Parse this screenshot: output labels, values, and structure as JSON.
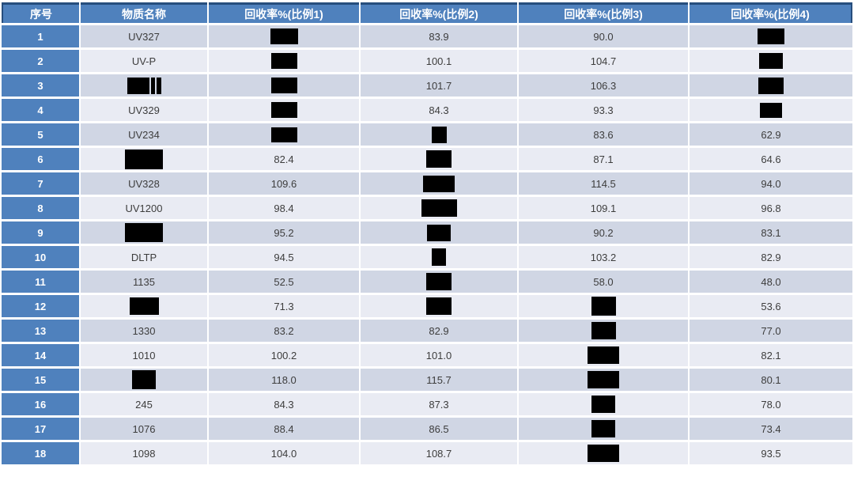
{
  "table": {
    "columns": [
      {
        "key": "index",
        "label": "序号"
      },
      {
        "key": "name",
        "label": "物质名称"
      },
      {
        "key": "r1",
        "label": "回收率%(比例1)"
      },
      {
        "key": "r2",
        "label": "回收率%(比例2)"
      },
      {
        "key": "r3",
        "label": "回收率%(比例3)"
      },
      {
        "key": "r4",
        "label": "回收率%(比例4)"
      }
    ],
    "rows": [
      {
        "index": "1",
        "name": "UV327",
        "r1": {
          "redacted": true,
          "w": 35,
          "h": 20
        },
        "r2": "83.9",
        "r3": "90.0",
        "r4": {
          "redacted": true,
          "w": 34,
          "h": 20
        }
      },
      {
        "index": "2",
        "name": "UV-P",
        "r1": {
          "redacted": true,
          "w": 33,
          "h": 20
        },
        "r2": "100.1",
        "r3": "104.7",
        "r4": {
          "redacted": true,
          "w": 30,
          "h": 20
        }
      },
      {
        "index": "3",
        "name": {
          "redacted": true,
          "w": 28,
          "h": 21,
          "bars": [
            5,
            6
          ]
        },
        "r1": {
          "redacted": true,
          "w": 33,
          "h": 20
        },
        "r2": "101.7",
        "r3": "106.3",
        "r4": {
          "redacted": true,
          "w": 32,
          "h": 21
        }
      },
      {
        "index": "4",
        "name": "UV329",
        "r1": {
          "redacted": true,
          "w": 33,
          "h": 20
        },
        "r2": "84.3",
        "r3": "93.3",
        "r4": {
          "redacted": true,
          "w": 28,
          "h": 19
        }
      },
      {
        "index": "5",
        "name": "UV234",
        "r1": {
          "redacted": true,
          "w": 33,
          "h": 19
        },
        "r2": {
          "redacted": true,
          "w": 19,
          "h": 21
        },
        "r3": "83.6",
        "r4": "62.9"
      },
      {
        "index": "6",
        "name": {
          "redacted": true,
          "w": 48,
          "h": 25
        },
        "r1": "82.4",
        "r2": {
          "redacted": true,
          "w": 32,
          "h": 22
        },
        "r3": "87.1",
        "r4": "64.6"
      },
      {
        "index": "7",
        "name": "UV328",
        "r1": "109.6",
        "r2": {
          "redacted": true,
          "w": 40,
          "h": 21
        },
        "r3": "114.5",
        "r4": "94.0"
      },
      {
        "index": "8",
        "name": "UV1200",
        "r1": "98.4",
        "r2": {
          "redacted": true,
          "w": 45,
          "h": 22
        },
        "r3": "109.1",
        "r4": "96.8"
      },
      {
        "index": "9",
        "name": {
          "redacted": true,
          "w": 48,
          "h": 24
        },
        "r1": "95.2",
        "r2": {
          "redacted": true,
          "w": 30,
          "h": 21
        },
        "r3": "90.2",
        "r4": "83.1"
      },
      {
        "index": "10",
        "name": "DLTP",
        "r1": "94.5",
        "r2": {
          "redacted": true,
          "w": 18,
          "h": 22
        },
        "r3": "103.2",
        "r4": "82.9"
      },
      {
        "index": "11",
        "name": "1135",
        "r1": "52.5",
        "r2": {
          "redacted": true,
          "w": 32,
          "h": 22
        },
        "r3": "58.0",
        "r4": "48.0"
      },
      {
        "index": "12",
        "name": {
          "redacted": true,
          "w": 37,
          "h": 22
        },
        "r1": "71.3",
        "r2": {
          "redacted": true,
          "w": 32,
          "h": 22
        },
        "r3": {
          "redacted": true,
          "w": 31,
          "h": 24
        },
        "r4": "53.6"
      },
      {
        "index": "13",
        "name": "1330",
        "r1": "83.2",
        "r2": "82.9",
        "r3": {
          "redacted": true,
          "w": 31,
          "h": 22
        },
        "r4": "77.0"
      },
      {
        "index": "14",
        "name": "1010",
        "r1": "100.2",
        "r2": "101.0",
        "r3": {
          "redacted": true,
          "w": 40,
          "h": 22
        },
        "r4": "82.1"
      },
      {
        "index": "15",
        "name": {
          "redacted": true,
          "w": 30,
          "h": 24
        },
        "r1": "118.0",
        "r2": "115.7",
        "r3": {
          "redacted": true,
          "w": 40,
          "h": 22
        },
        "r4": "80.1"
      },
      {
        "index": "16",
        "name": "245",
        "r1": "84.3",
        "r2": "87.3",
        "r3": {
          "redacted": true,
          "w": 30,
          "h": 22
        },
        "r4": "78.0"
      },
      {
        "index": "17",
        "name": "1076",
        "r1": "88.4",
        "r2": "86.5",
        "r3": {
          "redacted": true,
          "w": 30,
          "h": 22
        },
        "r4": "73.4"
      },
      {
        "index": "18",
        "name": "1098",
        "r1": "104.0",
        "r2": "108.7",
        "r3": {
          "redacted": true,
          "w": 40,
          "h": 22
        },
        "r4": "93.5"
      }
    ]
  },
  "colors": {
    "header_blue": "#4f81bd",
    "band_dark": "#d0d6e4",
    "band_light": "#e9ebf3",
    "top_border": "#274e7d",
    "text_dark": "#3d3d3d",
    "redaction": "#000000"
  }
}
